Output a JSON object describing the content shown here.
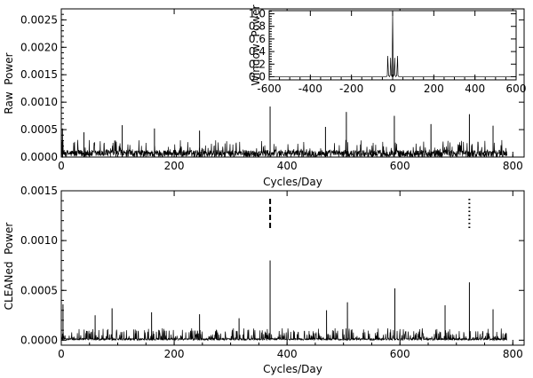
{
  "chart_data": [
    {
      "type": "line",
      "panel": "top",
      "xlabel": "Cycles/Day",
      "ylabel": "Raw  Power",
      "xlim": [
        0,
        820
      ],
      "ylim": [
        0,
        0.0027
      ],
      "xticks": [
        0,
        200,
        400,
        600,
        800
      ],
      "xtick_labels": [
        "0",
        "200",
        "400",
        "600",
        "800"
      ],
      "yticks": [
        0,
        0.0005,
        0.001,
        0.0015,
        0.002,
        0.0025
      ],
      "ytick_labels": [
        "0.0000",
        "0.0005",
        "0.0010",
        "0.0015",
        "0.0020",
        "0.0025"
      ],
      "x_range": [
        0,
        790
      ],
      "noise_level": 0.00013,
      "peaks": [
        {
          "x": 2,
          "y": 0.00052
        },
        {
          "x": 40,
          "y": 0.00045
        },
        {
          "x": 108,
          "y": 0.00058
        },
        {
          "x": 165,
          "y": 0.00052
        },
        {
          "x": 245,
          "y": 0.00048
        },
        {
          "x": 370,
          "y": 0.00092
        },
        {
          "x": 468,
          "y": 0.00055
        },
        {
          "x": 505,
          "y": 0.00082
        },
        {
          "x": 590,
          "y": 0.00075
        },
        {
          "x": 655,
          "y": 0.0006
        },
        {
          "x": 723,
          "y": 0.00078
        },
        {
          "x": 765,
          "y": 0.00057
        }
      ],
      "grid": false
    },
    {
      "type": "line",
      "panel": "inset",
      "xlabel": "",
      "ylabel": "Window  Power",
      "xlim": [
        -600,
        600
      ],
      "ylim": [
        -0.05,
        1.05
      ],
      "xticks": [
        -600,
        -400,
        -200,
        0,
        200,
        400,
        600
      ],
      "xtick_labels": [
        "-600",
        "-400",
        "-200",
        "0",
        "200",
        "400",
        "600"
      ],
      "yticks": [
        0,
        0.2,
        0.4,
        0.6,
        0.8,
        1.0
      ],
      "ytick_labels": [
        "0.0",
        "0.2",
        "0.4",
        "0.6",
        "0.8",
        "1.0"
      ],
      "x": [
        -600,
        -30,
        -26,
        -24,
        -20,
        -15,
        -12,
        -10,
        -6,
        -3,
        0,
        3,
        6,
        10,
        12,
        15,
        20,
        24,
        26,
        30,
        600
      ],
      "y": [
        0,
        0,
        0.02,
        0.33,
        0.02,
        0,
        0.03,
        0.3,
        0.02,
        0,
        1.0,
        0,
        0.02,
        0.3,
        0.03,
        0,
        0.02,
        0.33,
        0.02,
        0,
        0
      ],
      "grid": false
    },
    {
      "type": "line",
      "panel": "bottom",
      "xlabel": "Cycles/Day",
      "ylabel": "CLEANed  Power",
      "xlim": [
        0,
        820
      ],
      "ylim": [
        -5e-05,
        0.0015
      ],
      "xticks": [
        0,
        200,
        400,
        600,
        800
      ],
      "xtick_labels": [
        "0",
        "200",
        "400",
        "600",
        "800"
      ],
      "yticks": [
        0,
        0.0005,
        0.001,
        0.0015
      ],
      "ytick_labels": [
        "0.0000",
        "0.0005",
        "0.0010",
        "0.0015"
      ],
      "x_range": [
        0,
        790
      ],
      "noise_level": 3e-05,
      "peaks": [
        {
          "x": 3,
          "y": 0.00036
        },
        {
          "x": 60,
          "y": 0.00025
        },
        {
          "x": 90,
          "y": 0.00032
        },
        {
          "x": 160,
          "y": 0.00028
        },
        {
          "x": 245,
          "y": 0.00026
        },
        {
          "x": 315,
          "y": 0.00022
        },
        {
          "x": 370,
          "y": 0.0008
        },
        {
          "x": 470,
          "y": 0.0003
        },
        {
          "x": 507,
          "y": 0.00038
        },
        {
          "x": 591,
          "y": 0.00052
        },
        {
          "x": 680,
          "y": 0.00035
        },
        {
          "x": 723,
          "y": 0.00058
        },
        {
          "x": 765,
          "y": 0.00031
        }
      ],
      "markers": [
        {
          "style": "dashed",
          "x": 370,
          "y_range": [
            0.00112,
            0.00142
          ]
        },
        {
          "style": "dotted",
          "x": 723,
          "y_range": [
            0.00112,
            0.00142
          ]
        }
      ],
      "grid": false
    }
  ]
}
